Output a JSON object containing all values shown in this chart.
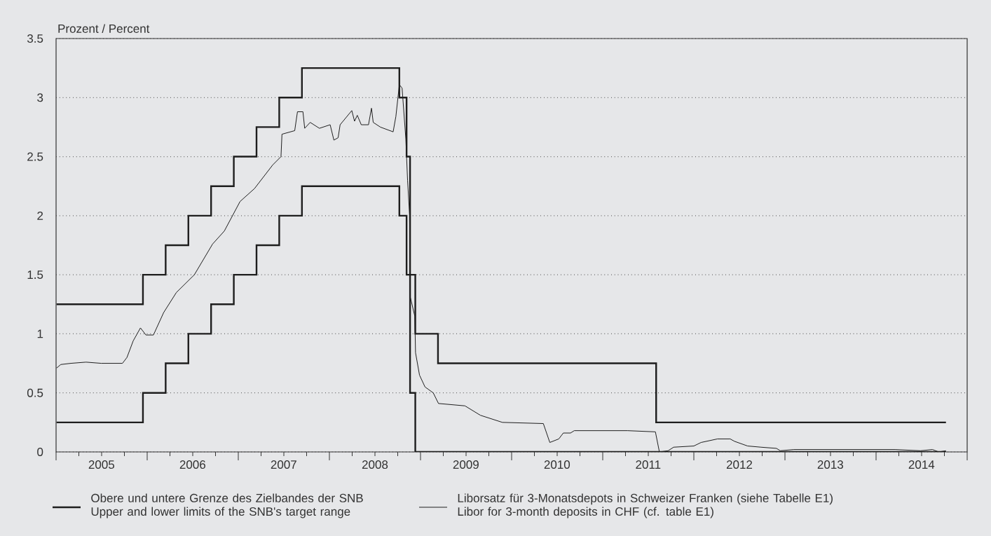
{
  "chart_data": {
    "type": "line",
    "ylabel": "Prozent / Percent",
    "xlim": [
      "2005-01-01",
      "2015-01-01"
    ],
    "ylim": [
      0,
      3.5
    ],
    "yticks": [
      0,
      0.5,
      1,
      1.5,
      2,
      2.5,
      3,
      3.5
    ],
    "xticks": [
      {
        "value": "2005-01-01",
        "label": null
      },
      {
        "value": "2005-07-02",
        "label": "2005"
      },
      {
        "value": "2006-01-01",
        "label": null
      },
      {
        "value": "2006-07-02",
        "label": "2006"
      },
      {
        "value": "2007-01-01",
        "label": null
      },
      {
        "value": "2007-07-02",
        "label": "2007"
      },
      {
        "value": "2008-01-01",
        "label": null
      },
      {
        "value": "2008-07-02",
        "label": "2008"
      },
      {
        "value": "2009-01-01",
        "label": null
      },
      {
        "value": "2009-07-02",
        "label": "2009"
      },
      {
        "value": "2010-01-01",
        "label": null
      },
      {
        "value": "2010-07-02",
        "label": "2010"
      },
      {
        "value": "2011-01-01",
        "label": null
      },
      {
        "value": "2011-07-02",
        "label": "2011"
      },
      {
        "value": "2012-01-01",
        "label": null
      },
      {
        "value": "2012-07-02",
        "label": "2012"
      },
      {
        "value": "2013-01-01",
        "label": null
      },
      {
        "value": "2013-07-02",
        "label": "2013"
      },
      {
        "value": "2014-01-01",
        "label": null
      },
      {
        "value": "2014-07-02",
        "label": "2014"
      },
      {
        "value": "2015-01-01",
        "label": null
      }
    ],
    "grid": "y",
    "legend": "bottom",
    "series": [
      {
        "type": "step",
        "name": "Obere und untere Grenze des Zielbandes der SNB Upper and lower limits of the SNB's target range",
        "color": "#1e1e1e",
        "x": [
          "2005-01-03",
          "2005-12-15",
          "2006-03-16",
          "2006-06-15",
          "2006-09-14",
          "2006-12-14",
          "2007-03-15",
          "2007-06-14",
          "2007-09-13",
          "2008-10-08",
          "2008-11-06",
          "2008-11-20",
          "2008-12-11",
          "2009-03-12",
          "2011-08-03",
          "2014-10-08"
        ],
        "values": [
          1.25,
          1.5,
          1.75,
          2,
          2.25,
          2.5,
          2.75,
          3,
          3.25,
          3,
          2.5,
          1.5,
          1,
          0.75,
          0.25,
          0.25
        ]
      },
      {
        "type": "step",
        "color": "#1e1e1e",
        "x": [
          "2005-01-03",
          "2005-12-15",
          "2006-03-16",
          "2006-06-15",
          "2006-09-14",
          "2006-12-14",
          "2007-03-15",
          "2007-06-14",
          "2007-09-13",
          "2008-10-08",
          "2008-11-06",
          "2008-11-20",
          "2008-12-11",
          "2014-10-08"
        ],
        "values": [
          0.25,
          0.5,
          0.75,
          1,
          1.25,
          1.5,
          1.75,
          2,
          2.25,
          2,
          1.5,
          0.5,
          0,
          0
        ]
      },
      {
        "name": "Liborsatz für 3-Monatsdepots in Schweizer Franken (siehe Tabelle E1) Libor for 3-month deposits in CHF (cf. table E1)",
        "color": "#1e1e1e",
        "x": [
          "2005-01-03",
          "2005-01-20",
          "2005-03-01",
          "2005-05-01",
          "2005-07-01",
          "2005-09-24",
          "2005-10-12",
          "2005-11-06",
          "2005-12-05",
          "2005-12-27",
          "2006-01-26",
          "2006-03-08",
          "2006-04-28",
          "2006-07-09",
          "2006-09-20",
          "2006-11-06",
          "2007-01-08",
          "2007-03-07",
          "2007-05-19",
          "2007-06-21",
          "2007-06-25",
          "2007-08-15",
          "2007-08-26",
          "2007-09-17",
          "2007-09-24",
          "2007-10-16",
          "2007-11-22",
          "2008-01-04",
          "2008-01-19",
          "2008-02-05",
          "2008-02-13",
          "2008-03-31",
          "2008-04-11",
          "2008-04-22",
          "2008-05-08",
          "2008-06-06",
          "2008-06-18",
          "2008-06-25",
          "2008-07-24",
          "2008-09-13",
          "2008-09-24",
          "2008-10-08",
          "2008-10-19",
          "2008-11-03",
          "2008-11-10",
          "2008-11-18",
          "2008-11-21",
          "2008-12-09",
          "2008-12-12",
          "2008-12-28",
          "2009-01-19",
          "2009-02-21",
          "2009-03-14",
          "2009-06-28",
          "2009-08-29",
          "2009-11-25",
          "2010-05-08",
          "2010-06-03",
          "2010-07-09",
          "2010-07-27",
          "2010-08-25",
          "2010-09-09",
          "2011-04-10",
          "2011-07-31",
          "2011-08-16",
          "2011-09-20",
          "2011-10-12",
          "2012-01-01",
          "2012-01-30",
          "2012-04-05",
          "2012-05-26",
          "2012-06-12",
          "2012-08-04",
          "2012-09-27",
          "2012-11-28",
          "2012-12-13",
          "2013-02-06",
          "2013-11-14",
          "2014-03-18",
          "2014-06-28",
          "2014-08-15",
          "2014-09-09",
          "2014-10-08"
        ],
        "values": [
          0.71,
          0.74,
          0.75,
          0.76,
          0.75,
          0.75,
          0.8,
          0.94,
          1.05,
          0.99,
          0.99,
          1.18,
          1.35,
          1.5,
          1.76,
          1.87,
          2.12,
          2.23,
          2.43,
          2.5,
          2.69,
          2.72,
          2.88,
          2.88,
          2.74,
          2.79,
          2.74,
          2.77,
          2.64,
          2.66,
          2.77,
          2.89,
          2.8,
          2.85,
          2.77,
          2.77,
          2.91,
          2.79,
          2.75,
          2.71,
          2.84,
          3.11,
          3.08,
          2.65,
          2.3,
          2.01,
          1.31,
          1.15,
          0.84,
          0.65,
          0.55,
          0.5,
          0.41,
          0.39,
          0.31,
          0.25,
          0.24,
          0.08,
          0.11,
          0.16,
          0.16,
          0.18,
          0.18,
          0.17,
          0,
          0.01,
          0.04,
          0.05,
          0.08,
          0.11,
          0.11,
          0.09,
          0.05,
          0.04,
          0.03,
          0.01,
          0.02,
          0.02,
          0.02,
          0.01,
          0.02,
          0,
          0.01
        ]
      }
    ]
  }
}
